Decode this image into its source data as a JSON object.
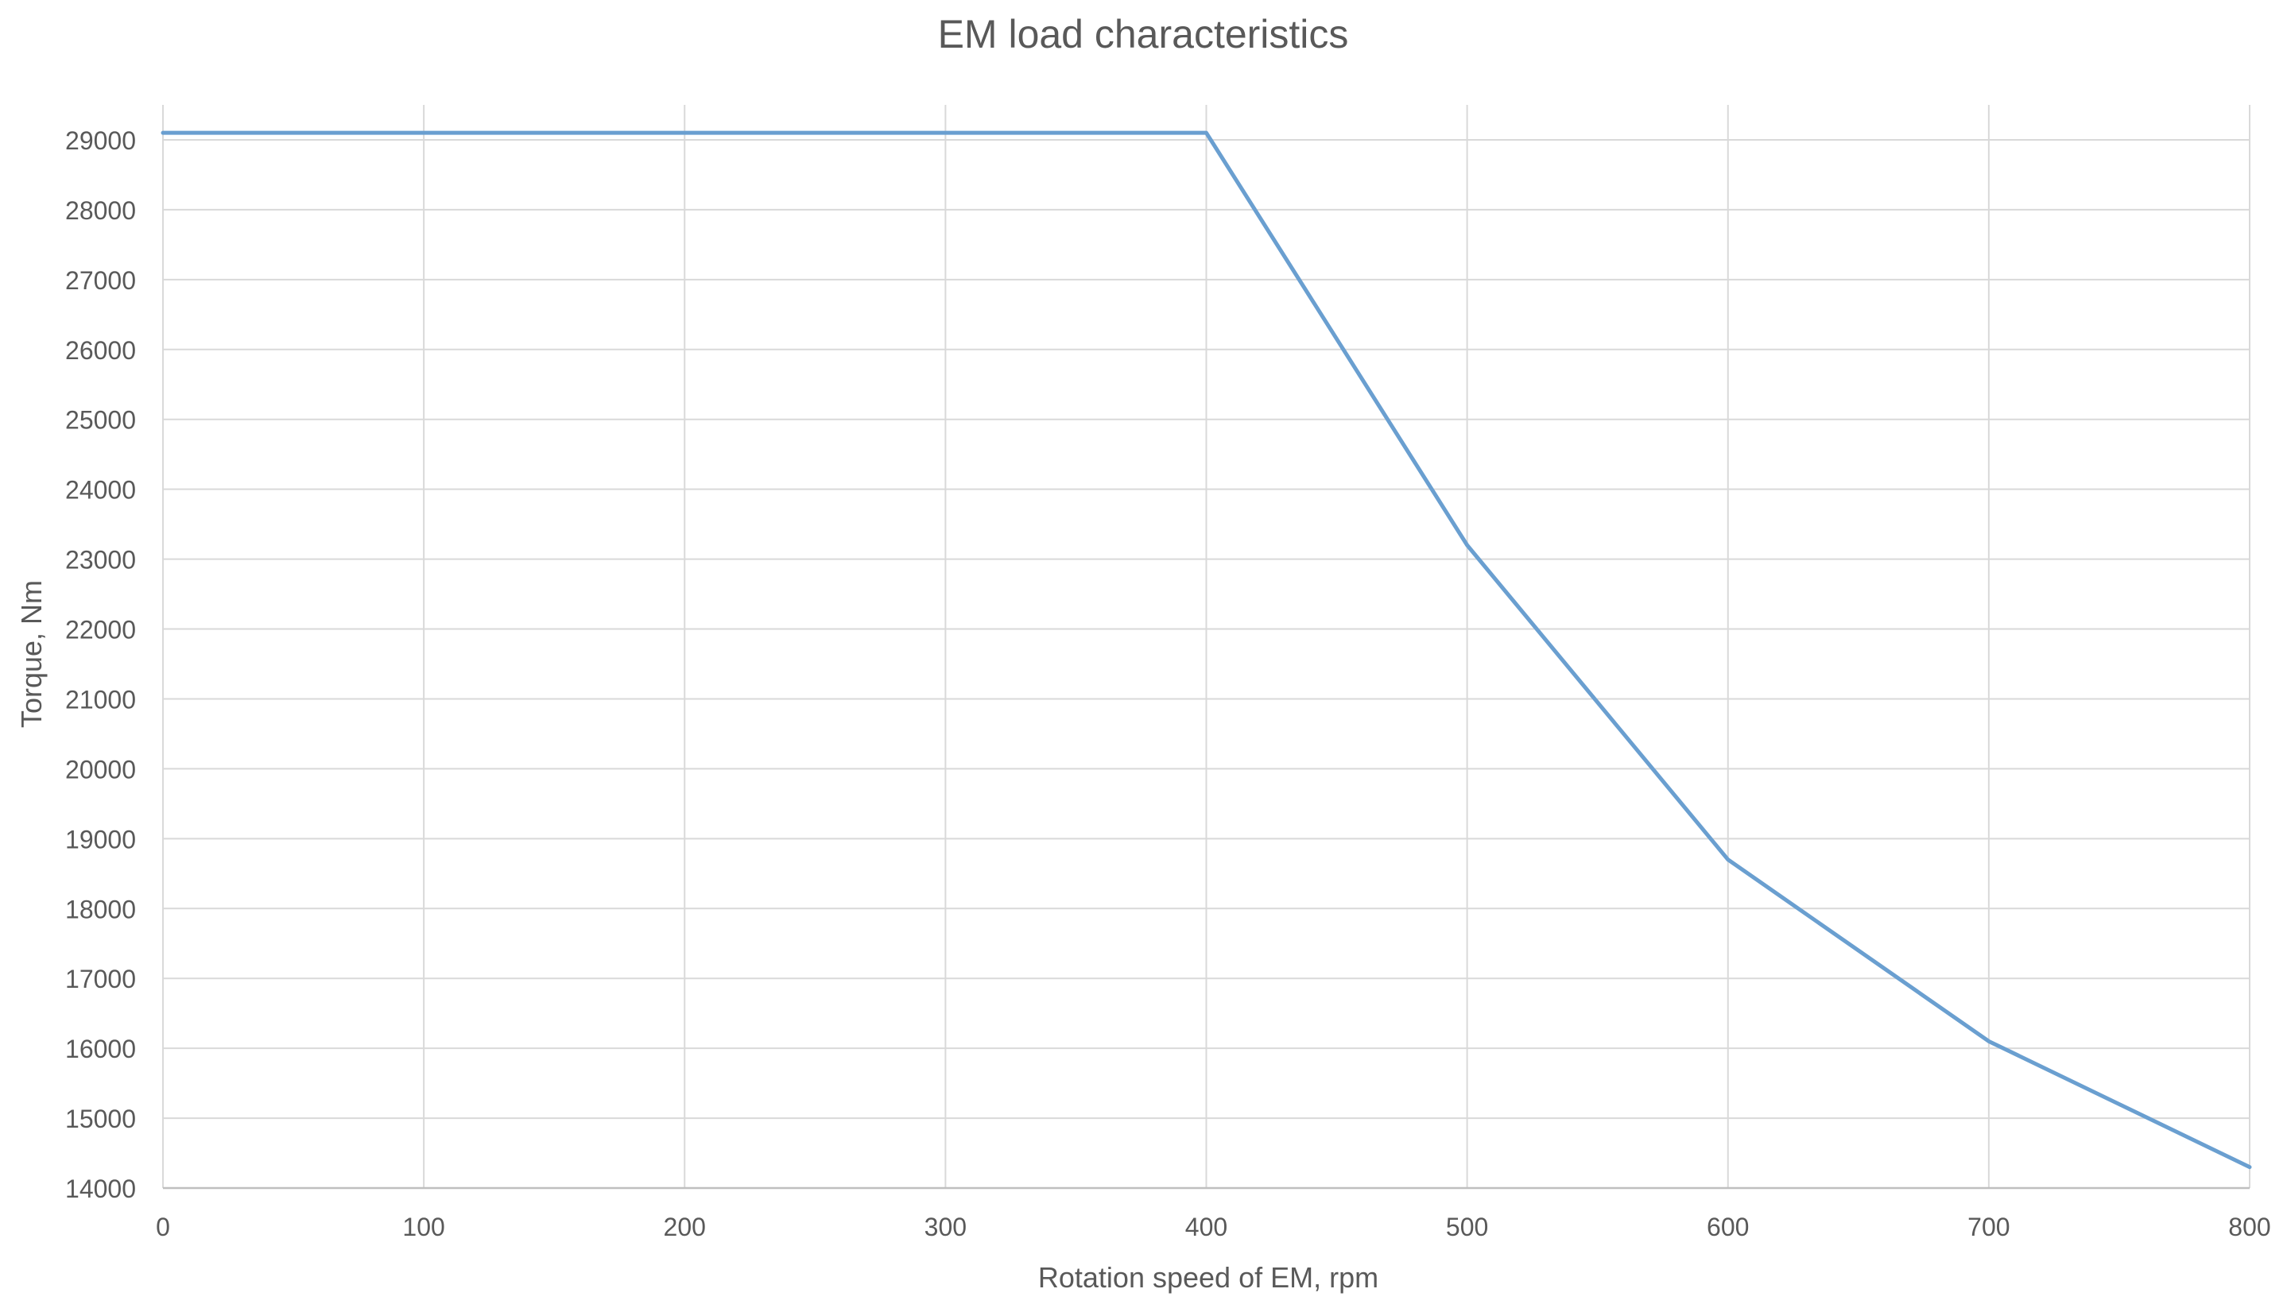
{
  "chart_data": {
    "type": "line",
    "title": "EM load characteristics",
    "xlabel": "Rotation speed of EM, rpm",
    "ylabel": "Torque, Nm",
    "xlim": [
      0,
      800
    ],
    "ylim": [
      14000,
      29500
    ],
    "x_ticks": [
      0,
      100,
      200,
      300,
      400,
      500,
      600,
      700,
      800
    ],
    "y_ticks": [
      14000,
      15000,
      16000,
      17000,
      18000,
      19000,
      20000,
      21000,
      22000,
      23000,
      24000,
      25000,
      26000,
      27000,
      28000,
      29000
    ],
    "grid": true,
    "legend": "none",
    "series": [
      {
        "color": "#6a9fd0",
        "x": [
          0,
          100,
          200,
          300,
          400,
          500,
          600,
          700,
          800
        ],
        "y": [
          29100,
          29100,
          29100,
          29100,
          29100,
          23200,
          18700,
          16100,
          14300
        ]
      }
    ]
  }
}
